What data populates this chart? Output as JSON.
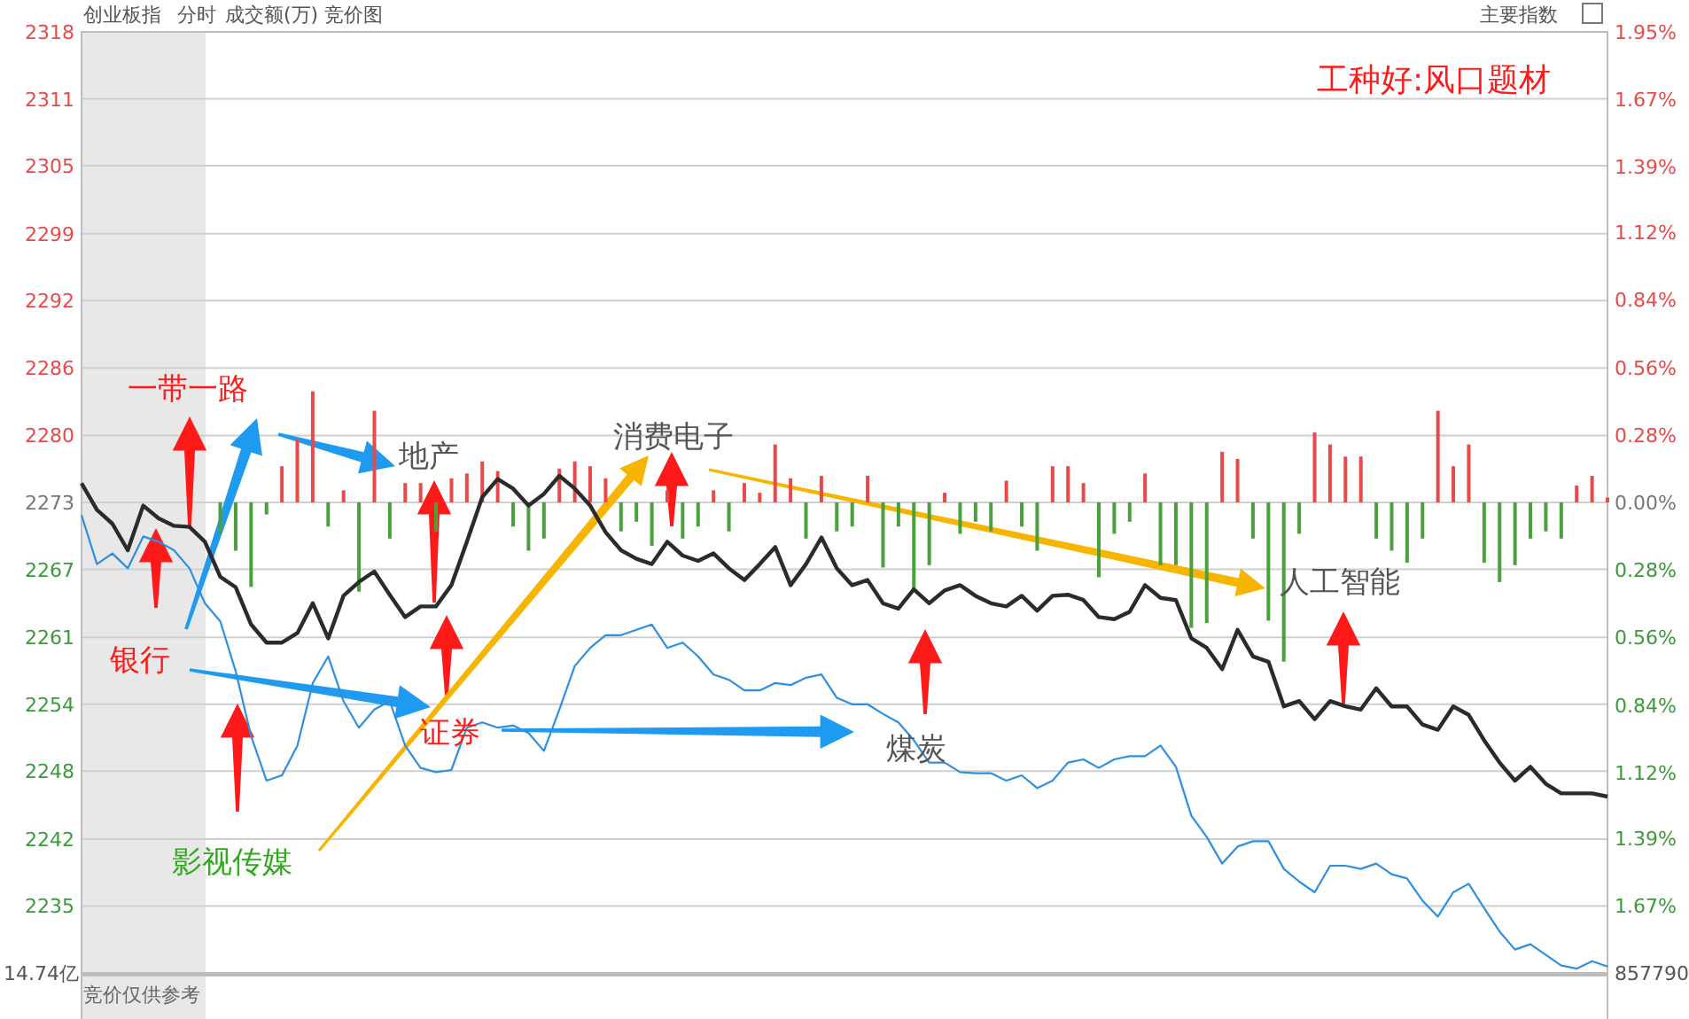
{
  "chart_data": {
    "type": "line",
    "title": "创业板指",
    "annotations": [
      "分时",
      "成交额(万)",
      "竞价图",
      "主要指数",
      "工种好:风口题材",
      "一带一路",
      "地产",
      "消费电子",
      "人工智能",
      "煤炭",
      "证券",
      "银行",
      "影视传媒",
      "竞价仅供参考",
      "14.74亿",
      "857790"
    ],
    "categories": [
      null,
      null,
      null,
      null,
      null,
      null,
      null,
      null,
      null,
      null,
      null,
      null,
      null,
      null,
      null,
      null,
      null,
      null,
      null,
      null,
      null,
      null,
      null,
      null,
      null,
      null,
      null,
      null,
      null,
      null,
      null,
      null,
      null,
      null,
      null,
      null,
      null,
      null,
      null,
      null,
      null,
      null,
      null,
      null,
      null,
      null,
      null,
      null,
      null,
      null,
      null,
      null,
      null,
      null,
      null,
      null,
      null,
      null,
      null,
      null,
      null,
      null,
      null,
      null,
      null,
      null,
      null,
      null,
      null,
      null,
      null,
      null,
      null,
      null,
      null,
      null,
      null,
      null,
      null,
      null,
      null,
      null,
      null,
      null,
      null,
      null,
      null,
      null,
      null,
      null,
      null,
      null,
      null,
      null,
      null,
      null,
      null,
      null,
      null,
      null
    ],
    "series": [
      {
        "type": "bar",
        "axis": "y2",
        "values": [
          null,
          null,
          null,
          null,
          null,
          null,
          null,
          null,
          null,
          -0.13,
          -0.2,
          -0.35,
          -0.05,
          0.15,
          0.26,
          0.46,
          -0.1,
          0.05,
          -0.37,
          0.38,
          -0.15,
          0.08,
          0.08,
          -0.12,
          0.1,
          0.12,
          0.17,
          0.13,
          -0.1,
          -0.2,
          -0.15,
          0.14,
          0.17,
          0.15,
          0.1,
          -0.12,
          -0.08,
          -0.18,
          0.05,
          -0.15,
          -0.1,
          0.05,
          -0.12,
          0.08,
          0.04,
          0.24,
          0.1,
          -0.15,
          0.11,
          -0.12,
          -0.1,
          0.11,
          -0.27,
          -0.1,
          -0.37,
          -0.26,
          0.04,
          -0.13,
          -0.08,
          -0.12,
          0.09,
          -0.1,
          -0.2,
          0.15,
          0.15,
          0.08,
          -0.31,
          -0.13,
          -0.08,
          0.12,
          -0.26,
          -0.26,
          -0.52,
          -0.5,
          0.21,
          0.18,
          -0.15,
          -0.49,
          -0.66,
          -0.13,
          0.29,
          0.24,
          0.19,
          0.19,
          -0.15,
          -0.2,
          -0.25,
          -0.15,
          0.38,
          0.15,
          0.24,
          -0.25,
          -0.33,
          -0.26,
          -0.15,
          -0.12,
          -0.15,
          0.07,
          0.11,
          0.02
        ],
        "colors": [
          null,
          null,
          null,
          null,
          null,
          null,
          null,
          null,
          null,
          "#4aa03c",
          "#4aa03c",
          "#4aa03c",
          "#4aa03c",
          "#e84a4a",
          "#e84a4a",
          "#e84a4a",
          "#4aa03c",
          "#e84a4a",
          "#4aa03c",
          "#e84a4a",
          "#4aa03c",
          "#e84a4a",
          "#e84a4a",
          "#4aa03c",
          "#e84a4a",
          "#e84a4a",
          "#e84a4a",
          "#e84a4a",
          "#4aa03c",
          "#4aa03c",
          "#4aa03c",
          "#e84a4a",
          "#e84a4a",
          "#e84a4a",
          "#e84a4a",
          "#4aa03c",
          "#4aa03c",
          "#4aa03c",
          "#e84a4a",
          "#4aa03c",
          "#4aa03c",
          "#e84a4a",
          "#4aa03c",
          "#e84a4a",
          "#e84a4a",
          "#e84a4a",
          "#e84a4a",
          "#4aa03c",
          "#e84a4a",
          "#4aa03c",
          "#4aa03c",
          "#e84a4a",
          "#4aa03c",
          "#4aa03c",
          "#4aa03c",
          "#4aa03c",
          "#e84a4a",
          "#4aa03c",
          "#4aa03c",
          "#4aa03c",
          "#e84a4a",
          "#4aa03c",
          "#4aa03c",
          "#e84a4a",
          "#e84a4a",
          "#e84a4a",
          "#4aa03c",
          "#4aa03c",
          "#4aa03c",
          "#e84a4a",
          "#4aa03c",
          "#4aa03c",
          "#4aa03c",
          "#4aa03c",
          "#e84a4a",
          "#e84a4a",
          "#4aa03c",
          "#4aa03c",
          "#4aa03c",
          "#4aa03c",
          "#e84a4a",
          "#e84a4a",
          "#e84a4a",
          "#e84a4a",
          "#4aa03c",
          "#4aa03c",
          "#4aa03c",
          "#4aa03c",
          "#e84a4a",
          "#e84a4a",
          "#e84a4a",
          "#4aa03c",
          "#4aa03c",
          "#4aa03c",
          "#4aa03c",
          "#4aa03c",
          "#4aa03c",
          "#e84a4a",
          "#e84a4a",
          "#e84a4a"
        ]
      },
      {
        "color": "#2b2b2b",
        "values": [
          2275.1,
          2272.6,
          2271.3,
          2268.8,
          2273.0,
          2271.8,
          2271.1,
          2271.0,
          2269.6,
          2266.3,
          2265.3,
          2261.8,
          2260.1,
          2260.1,
          2261.0,
          2263.8,
          2260.5,
          2264.5,
          2265.8,
          2266.8,
          2264.6,
          2262.5,
          2263.5,
          2263.5,
          2265.5,
          2269.6,
          2273.8,
          2275.5,
          2274.6,
          2273.0,
          2274.1,
          2275.8,
          2274.6,
          2273.0,
          2270.5,
          2268.8,
          2268.0,
          2267.5,
          2269.6,
          2268.3,
          2267.8,
          2268.5,
          2267.1,
          2266.0,
          2267.5,
          2269.1,
          2265.5,
          2267.5,
          2270.0,
          2267.1,
          2265.5,
          2266.0,
          2263.8,
          2263.3,
          2265.1,
          2263.8,
          2265.0,
          2265.5,
          2264.5,
          2263.8,
          2263.5,
          2264.5,
          2263.1,
          2264.5,
          2264.6,
          2264.1,
          2262.5,
          2262.3,
          2263.0,
          2265.5,
          2264.3,
          2264.1,
          2260.5,
          2259.6,
          2257.6,
          2261.3,
          2258.8,
          2258.3,
          2254.1,
          2254.6,
          2252.9,
          2254.6,
          2254.1,
          2253.8,
          2255.8,
          2254.1,
          2254.1,
          2252.4,
          2251.9,
          2254.1,
          2253.3,
          2250.9,
          2248.8,
          2247.1,
          2248.4,
          2246.8,
          2245.9,
          2245.9,
          2245.9,
          2245.6
        ]
      },
      {
        "color": "#2f8fe0",
        "values": [
          2272.1,
          2267.5,
          2268.5,
          2267.1,
          2270.1,
          2269.6,
          2268.8,
          2267.1,
          2263.8,
          2262.1,
          2257.4,
          2251.3,
          2247.1,
          2247.6,
          2250.4,
          2256.3,
          2258.8,
          2254.6,
          2252.1,
          2253.8,
          2254.6,
          2250.4,
          2248.3,
          2247.9,
          2248.1,
          2252.1,
          2252.6,
          2252.1,
          2252.3,
          2251.6,
          2249.9,
          2253.8,
          2257.9,
          2259.6,
          2260.8,
          2260.8,
          2261.3,
          2261.8,
          2259.6,
          2260.1,
          2258.8,
          2257.1,
          2256.6,
          2255.6,
          2255.6,
          2256.3,
          2256.1,
          2256.8,
          2257.1,
          2254.9,
          2254.3,
          2254.3,
          2253.4,
          2252.6,
          2250.9,
          2248.8,
          2248.8,
          2247.9,
          2247.8,
          2247.8,
          2247.1,
          2247.6,
          2246.4,
          2247.1,
          2248.8,
          2249.1,
          2248.3,
          2249.1,
          2249.4,
          2249.4,
          2250.4,
          2248.4,
          2243.8,
          2241.8,
          2239.3,
          2240.9,
          2241.4,
          2241.4,
          2238.8,
          2237.6,
          2236.6,
          2239.1,
          2239.1,
          2238.8,
          2239.3,
          2238.3,
          2237.9,
          2235.8,
          2234.3,
          2236.6,
          2237.4,
          2235.1,
          2232.9,
          2231.2,
          2231.7,
          2230.7,
          2229.7,
          2229.4,
          2230.1,
          2229.6
        ]
      }
    ],
    "ylim": [
      2229.0,
      2317.6
    ],
    "yticks": [
      {
        "value": 2317.6,
        "label": "2318"
      },
      {
        "value": 2311.3,
        "label": "2311"
      },
      {
        "value": 2305.0,
        "label": "2305"
      },
      {
        "value": 2298.6,
        "label": "2299"
      },
      {
        "value": 2292.3,
        "label": "2292"
      },
      {
        "value": 2285.96,
        "label": "2286"
      },
      {
        "value": 2279.6,
        "label": "2280"
      },
      {
        "value": 2273.3,
        "label": "2273"
      },
      {
        "value": 2267.0,
        "label": "2267"
      },
      {
        "value": 2260.6,
        "label": "2261"
      },
      {
        "value": 2254.3,
        "label": "2254"
      },
      {
        "value": 2248.0,
        "label": "2248"
      },
      {
        "value": 2241.6,
        "label": "2242"
      },
      {
        "value": 2235.3,
        "label": "2235"
      }
    ],
    "y2lim": [
      -1.95,
      1.95
    ],
    "y2ticks": [
      {
        "value": 1.95,
        "label": "1.95%"
      },
      {
        "value": 1.67,
        "label": "1.67%"
      },
      {
        "value": 1.39,
        "label": "1.39%"
      },
      {
        "value": 1.12,
        "label": "1.12%"
      },
      {
        "value": 0.84,
        "label": "0.84%"
      },
      {
        "value": 0.56,
        "label": "0.56%"
      },
      {
        "value": 0.28,
        "label": "0.28%"
      },
      {
        "value": 0,
        "label": "0.00%"
      },
      {
        "value": -0.28,
        "label": "0.28%"
      },
      {
        "value": -0.56,
        "label": "0.56%"
      },
      {
        "value": -0.84,
        "label": "0.84%"
      },
      {
        "value": -1.12,
        "label": "1.12%"
      },
      {
        "value": -1.39,
        "label": "1.39%"
      },
      {
        "value": -1.67,
        "label": "1.67%"
      }
    ],
    "grid": "y"
  }
}
